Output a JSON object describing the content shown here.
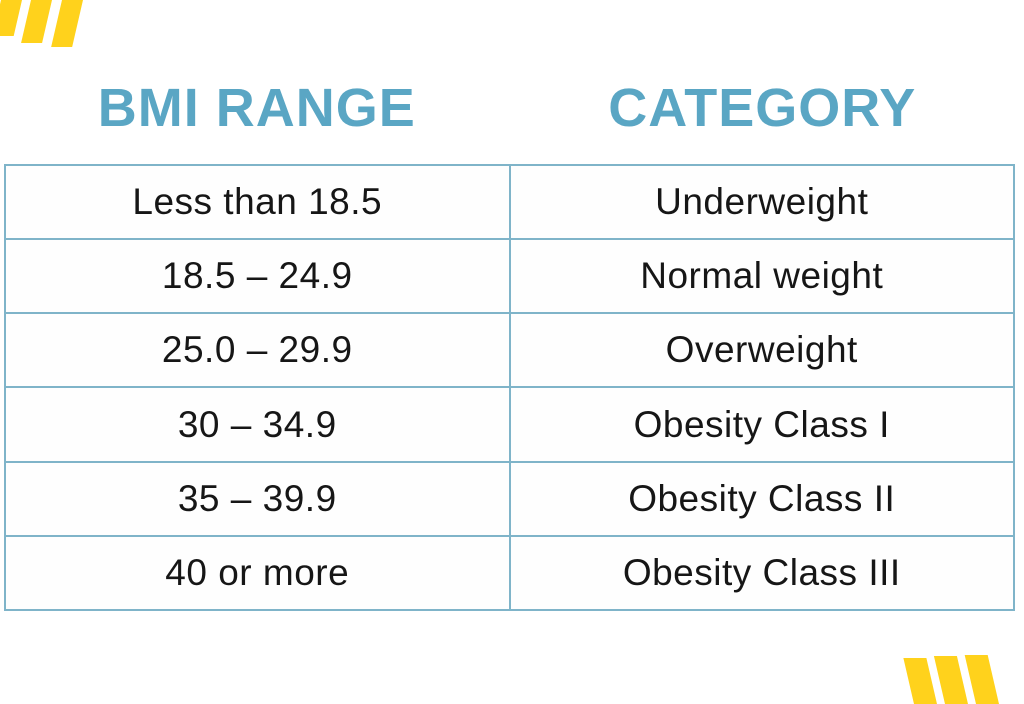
{
  "colors": {
    "accent": "#5AA6C4",
    "border": "#7FB4C9",
    "stripe": "#FFD21C",
    "text": "#161616"
  },
  "headings": {
    "bmi_range": "BMI RANGE",
    "category": "CATEGORY"
  },
  "table": {
    "rows": [
      {
        "bmi_range": "Less than 18.5",
        "category": "Underweight"
      },
      {
        "bmi_range": "18.5 – 24.9",
        "category": "Normal weight"
      },
      {
        "bmi_range": "25.0 – 29.9",
        "category": "Overweight"
      },
      {
        "bmi_range": "30 – 34.9",
        "category": "Obesity Class I"
      },
      {
        "bmi_range": "35 – 39.9",
        "category": "Obesity Class II"
      },
      {
        "bmi_range": "40 or more",
        "category": "Obesity Class III"
      }
    ]
  }
}
